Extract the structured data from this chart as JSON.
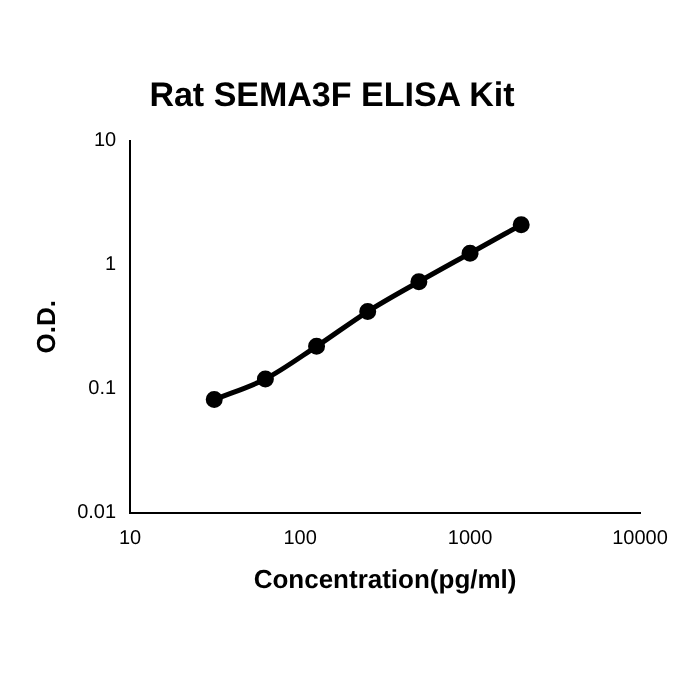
{
  "chart_data": {
    "type": "line",
    "title": "Rat SEMA3F ELISA Kit",
    "xlabel": "Concentration(pg/ml)",
    "ylabel": "O.D.",
    "x": [
      31.25,
      62.5,
      125,
      250,
      500,
      1000,
      2000
    ],
    "series": [
      {
        "color": "#000000",
        "values": [
          0.082,
          0.12,
          0.22,
          0.42,
          0.73,
          1.24,
          2.1
        ]
      }
    ],
    "log": "xy",
    "xlim": [
      10,
      10000
    ],
    "xticks": [
      10,
      100,
      1000,
      10000
    ],
    "ylim": [
      0.01,
      10
    ],
    "yticks": [
      0.01,
      0.1,
      1,
      10
    ],
    "grid": false,
    "legend": false,
    "marker": "circle",
    "line_style": "solid"
  }
}
